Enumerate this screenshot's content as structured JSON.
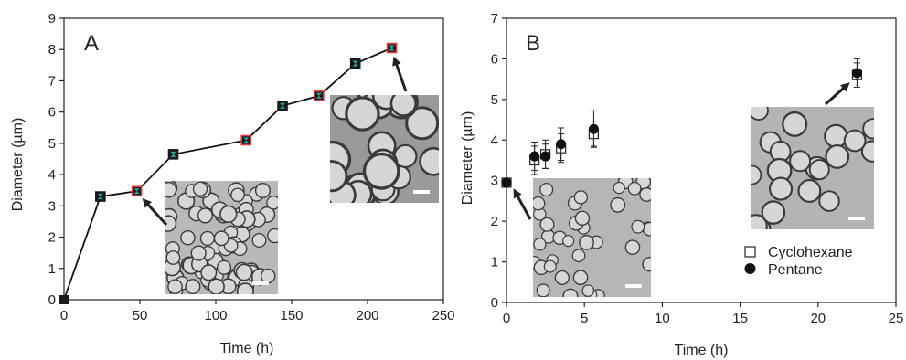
{
  "colors": {
    "axis": "#222222",
    "line": "#111111",
    "marker_dark": "#1a1a1a",
    "marker_teal_fill": "#2aa9a4",
    "marker_red_edge": "#e0393b",
    "inset_bg_small": "#b9b9b9",
    "inset_bg_large": "#9a9a9a"
  },
  "chart_data": [
    {
      "type": "line",
      "panel_label": "A",
      "xlabel": "Time (h)",
      "ylabel": "Diameter  (µm)",
      "xlim": [
        0,
        250
      ],
      "ylim": [
        0,
        9
      ],
      "xticks": [
        "0",
        "50",
        "100",
        "150",
        "200",
        "250"
      ],
      "yticks": [
        "0",
        "1",
        "2",
        "3",
        "4",
        "5",
        "6",
        "7",
        "8",
        "9"
      ],
      "grid": false,
      "series": [
        {
          "x": [
            0,
            24,
            48,
            72,
            120,
            144,
            168,
            192,
            216
          ],
          "y": [
            0,
            3.3,
            3.47,
            4.65,
            5.1,
            6.2,
            6.52,
            7.55,
            8.05
          ],
          "marker_style": [
            "solid",
            "teal",
            "red",
            "teal",
            "red",
            "teal",
            "red",
            "teal",
            "red"
          ]
        }
      ],
      "insets": [
        {
          "image": "micrograph-small-droplets",
          "points_to": {
            "x": 48,
            "y": 3.47
          }
        },
        {
          "image": "micrograph-large-droplets",
          "points_to": {
            "x": 216,
            "y": 8.05
          }
        }
      ]
    },
    {
      "type": "scatter",
      "panel_label": "B",
      "xlabel": "Time (h)",
      "ylabel": "Diameter (µm)",
      "xlim": [
        0,
        25
      ],
      "ylim": [
        0,
        7
      ],
      "xticks": [
        "0",
        "5",
        "10",
        "15",
        "20",
        "25"
      ],
      "yticks": [
        "0",
        "1",
        "2",
        "3",
        "4",
        "5",
        "6",
        "7"
      ],
      "grid": false,
      "legend_position": "bottom-right",
      "series": [
        {
          "name": "Cyclohexane",
          "marker": "open-square",
          "x": [
            0,
            1.8,
            2.5,
            3.5,
            5.6,
            22.5
          ],
          "y": [
            2.95,
            3.5,
            3.65,
            3.8,
            4.15,
            5.6
          ],
          "err": [
            0,
            0.35,
            0.35,
            0.35,
            0.3,
            0.3
          ]
        },
        {
          "name": "Pentane",
          "marker": "filled-circle",
          "x": [
            0,
            1.8,
            2.5,
            3.5,
            5.6,
            22.5
          ],
          "y": [
            2.95,
            3.6,
            3.6,
            3.9,
            4.27,
            5.65
          ],
          "err": [
            0,
            0.35,
            0.3,
            0.4,
            0.45,
            0.35
          ]
        }
      ],
      "insets": [
        {
          "image": "micrograph-initial-droplets",
          "points_to": {
            "x": 0,
            "y": 2.95
          }
        },
        {
          "image": "micrograph-grown-droplets",
          "points_to": {
            "x": 22.5,
            "y": 5.6
          }
        }
      ]
    }
  ]
}
